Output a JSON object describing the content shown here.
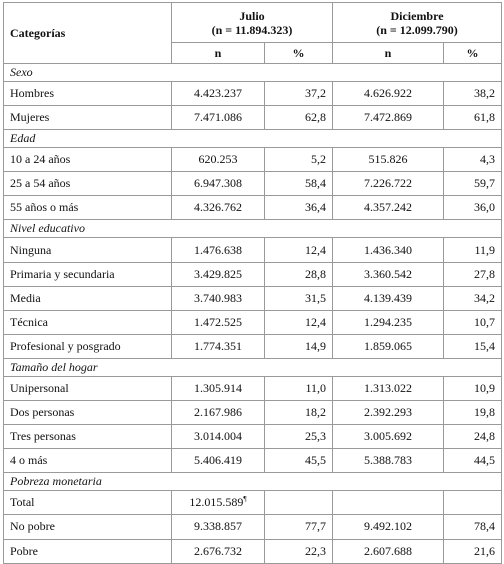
{
  "header": {
    "categorias": "Categorías",
    "julio_title": "Julio",
    "julio_n": "(n = 11.894.323)",
    "diciembre_title": "Diciembre",
    "diciembre_n": "(n = 12.099.790)",
    "n": "n",
    "pct": "%"
  },
  "sections": [
    {
      "title": "Sexo",
      "rows": [
        {
          "label": "Hombres",
          "jn": "4.423.237",
          "jp": "37,2",
          "dn": "4.626.922",
          "dp": "38,2"
        },
        {
          "label": "Mujeres",
          "jn": "7.471.086",
          "jp": "62,8",
          "dn": "7.472.869",
          "dp": "61,8"
        }
      ]
    },
    {
      "title": "Edad",
      "rows": [
        {
          "label": "10 a 24 años",
          "jn": "620.253",
          "jp": "5,2",
          "dn": "515.826",
          "dp": "4,3"
        },
        {
          "label": "25 a 54 años",
          "jn": "6.947.308",
          "jp": "58,4",
          "dn": "7.226.722",
          "dp": "59,7"
        },
        {
          "label": "55 años o más",
          "jn": "4.326.762",
          "jp": "36,4",
          "dn": "4.357.242",
          "dp": "36,0"
        }
      ]
    },
    {
      "title": "Nivel educativo",
      "rows": [
        {
          "label": "Ninguna",
          "jn": "1.476.638",
          "jp": "12,4",
          "dn": "1.436.340",
          "dp": "11,9"
        },
        {
          "label": "Primaria y secundaria",
          "jn": "3.429.825",
          "jp": "28,8",
          "dn": "3.360.542",
          "dp": "27,8"
        },
        {
          "label": "Media",
          "jn": "3.740.983",
          "jp": "31,5",
          "dn": "4.139.439",
          "dp": "34,2"
        },
        {
          "label": "Técnica",
          "jn": "1.472.525",
          "jp": "12,4",
          "dn": "1.294.235",
          "dp": "10,7"
        },
        {
          "label": "Profesional y posgrado",
          "jn": "1.774.351",
          "jp": "14,9",
          "dn": "1.859.065",
          "dp": "15,4"
        }
      ]
    },
    {
      "title": "Tamaño del hogar",
      "rows": [
        {
          "label": "Unipersonal",
          "jn": "1.305.914",
          "jp": "11,0",
          "dn": "1.313.022",
          "dp": "10,9"
        },
        {
          "label": "Dos personas",
          "jn": "2.167.986",
          "jp": "18,2",
          "dn": "2.392.293",
          "dp": "19,8"
        },
        {
          "label": "Tres personas",
          "jn": "3.014.004",
          "jp": "25,3",
          "dn": "3.005.692",
          "dp": "24,8"
        },
        {
          "label": "4 o más",
          "jn": "5.406.419",
          "jp": "45,5",
          "dn": "5.388.783",
          "dp": "44,5"
        }
      ]
    },
    {
      "title": "Pobreza monetaria",
      "rows": [
        {
          "label": "Total",
          "jn": "12.015.589",
          "jn_sup": "¶",
          "jp": "",
          "dn": "",
          "dp": ""
        },
        {
          "label": "No pobre",
          "jn": "9.338.857",
          "jp": "77,7",
          "dn": "9.492.102",
          "dp": "78,4"
        },
        {
          "label": "Pobre",
          "jn": "2.676.732",
          "jp": "22,3",
          "dn": "2.607.688",
          "dp": "21,6"
        }
      ]
    }
  ]
}
